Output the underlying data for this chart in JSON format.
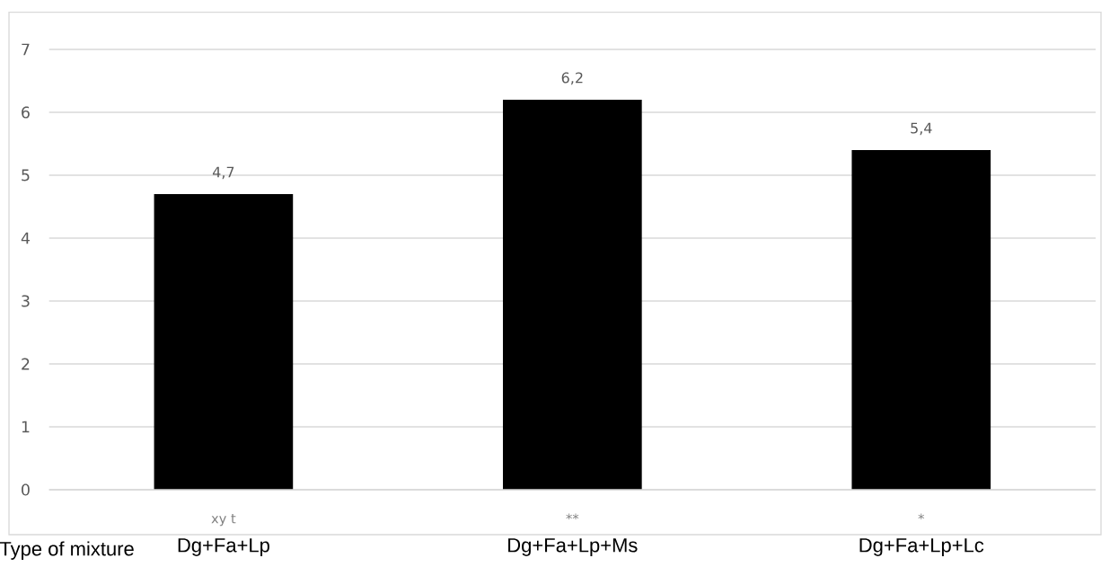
{
  "chart_data": {
    "type": "bar",
    "xlabel": "Type of mixture",
    "categories": [
      "Dg+Fa+Lp",
      "Dg+Fa+Lp+Ms",
      "Dg+Fa+Lp+Lc"
    ],
    "values": [
      4.7,
      6.2,
      5.4
    ],
    "color": "#000000",
    "value_labels": [
      "4,7",
      "6,2",
      "5,4"
    ],
    "annotations": [
      "xy t",
      "**",
      "*"
    ],
    "ylim": [
      0,
      7
    ],
    "yticks": [
      0,
      1,
      2,
      3,
      4,
      5,
      6,
      7
    ],
    "grid": "y"
  }
}
